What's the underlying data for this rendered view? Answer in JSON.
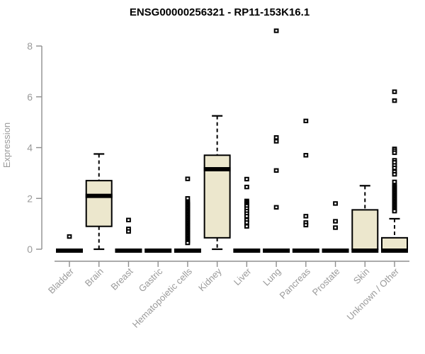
{
  "title": "ENSG00000256321 - RP11-153K16.1",
  "colors": {
    "box_fill": "#ECE7CD",
    "box_stroke": "#000000",
    "median": "#000000",
    "outlier": "#000000",
    "axis": "#8f8f8f",
    "tick_text": "#9a9a9a",
    "title_text": "#000000",
    "background": "#ffffff"
  },
  "chart_data": {
    "type": "boxplot",
    "title": "ENSG00000256321 - RP11-153K16.1",
    "xlabel": "",
    "ylabel": "Expression",
    "ylim": [
      0,
      8.8
    ],
    "yticks": [
      0,
      2,
      4,
      6,
      8
    ],
    "grid": false,
    "legend": "none",
    "categories": [
      "Bladder",
      "Brain",
      "Breast",
      "Gastric",
      "Hematopoietic cells",
      "Kidney",
      "Liver",
      "Lung",
      "Pancreas",
      "Prostate",
      "Skin",
      "Unknown / Other"
    ],
    "series": [
      {
        "category": "Bladder",
        "q1": 0,
        "median": 0,
        "q3": 0,
        "whisker_low": 0,
        "whisker_high": 0,
        "outliers": [
          0.5
        ]
      },
      {
        "category": "Brain",
        "q1": 0.9,
        "median": 2.1,
        "q3": 2.7,
        "whisker_low": 0,
        "whisker_high": 3.75,
        "outliers": []
      },
      {
        "category": "Breast",
        "q1": 0,
        "median": 0,
        "q3": 0,
        "whisker_low": 0,
        "whisker_high": 0,
        "outliers": [
          1.15,
          0.8,
          0.7
        ]
      },
      {
        "category": "Gastric",
        "q1": 0,
        "median": 0,
        "q3": 0,
        "whisker_low": 0,
        "whisker_high": 0,
        "outliers": []
      },
      {
        "category": "Hematopoietic cells",
        "q1": 0,
        "median": 0,
        "q3": 0,
        "whisker_low": 0,
        "whisker_high": 0,
        "outliers": [
          2.77,
          2.0,
          1.85,
          1.8,
          1.75,
          1.7,
          1.65,
          1.6,
          1.55,
          1.5,
          1.45,
          1.4,
          1.35,
          1.3,
          1.25,
          1.2,
          1.15,
          1.1,
          1.05,
          1.0,
          0.95,
          0.9,
          0.85,
          0.8,
          0.75,
          0.7,
          0.65,
          0.6,
          0.55,
          0.5,
          0.45,
          0.4,
          0.35,
          0.3,
          0.25
        ]
      },
      {
        "category": "Kidney",
        "q1": 0.45,
        "median": 3.15,
        "q3": 3.7,
        "whisker_low": 0,
        "whisker_high": 5.25,
        "outliers": []
      },
      {
        "category": "Liver",
        "q1": 0,
        "median": 0,
        "q3": 0,
        "whisker_low": 0,
        "whisker_high": 0,
        "outliers": [
          2.76,
          2.45,
          1.9,
          1.85,
          1.8,
          1.75,
          1.7,
          1.6,
          1.5,
          1.4,
          1.3,
          1.15,
          1.05,
          0.9
        ]
      },
      {
        "category": "Lung",
        "q1": 0,
        "median": 0,
        "q3": 0,
        "whisker_low": 0,
        "whisker_high": 0,
        "outliers": [
          8.6,
          4.4,
          4.25,
          3.1,
          1.65
        ]
      },
      {
        "category": "Pancreas",
        "q1": 0,
        "median": 0,
        "q3": 0,
        "whisker_low": 0,
        "whisker_high": 0,
        "outliers": [
          5.05,
          3.7,
          1.3,
          1.05,
          0.95
        ]
      },
      {
        "category": "Prostate",
        "q1": 0,
        "median": 0,
        "q3": 0,
        "whisker_low": 0,
        "whisker_high": 0,
        "outliers": [
          1.8,
          1.1,
          0.85
        ]
      },
      {
        "category": "Skin",
        "q1": 0,
        "median": 0,
        "q3": 1.55,
        "whisker_low": 0,
        "whisker_high": 2.5,
        "outliers": []
      },
      {
        "category": "Unknown / Other",
        "q1": 0,
        "median": 0,
        "q3": 0.45,
        "whisker_low": 0,
        "whisker_high": 1.2,
        "outliers": [
          6.2,
          5.85,
          3.95,
          3.88,
          3.8,
          3.5,
          3.42,
          3.3,
          3.2,
          3.05,
          2.95,
          2.65,
          2.5,
          2.45,
          2.4,
          2.35,
          2.3,
          2.25,
          2.2,
          2.15,
          2.1,
          2.05,
          2.0,
          1.95,
          1.9,
          1.85,
          1.8,
          1.75,
          1.7,
          1.65,
          1.6,
          1.55,
          1.5
        ]
      }
    ]
  }
}
